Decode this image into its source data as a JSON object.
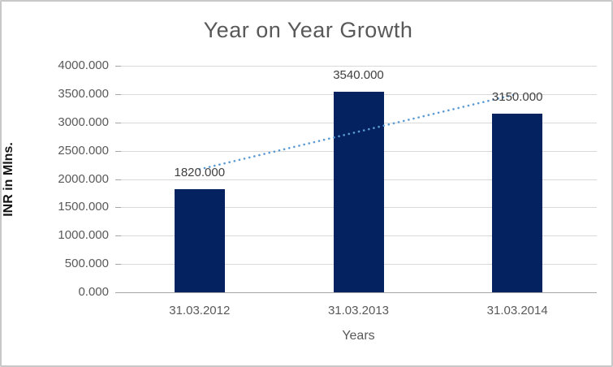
{
  "window": {
    "background": "#ffffff",
    "border_color": "#c8c8c8"
  },
  "chart_data": {
    "type": "bar",
    "title": "Year on Year Growth",
    "xlabel": "Years",
    "ylabel": "INR in Mlns.",
    "categories": [
      "31.03.2012",
      "31.03.2013",
      "31.03.2014"
    ],
    "values": [
      1820,
      3540,
      3150
    ],
    "data_labels": [
      "1820.000",
      "3540.000",
      "3150.000"
    ],
    "ylim": [
      0,
      4000
    ],
    "ytick_step": 500,
    "ytick_labels": [
      "0.000",
      "500.000",
      "1000.000",
      "1500.000",
      "2000.000",
      "2500.000",
      "3000.000",
      "3500.000",
      "4000.000"
    ],
    "grid": true,
    "legend": false,
    "trendline": {
      "type": "linear",
      "style": "dotted",
      "color": "#5b9bd5"
    },
    "colors": {
      "bar": "#04225f",
      "trend": "#5b9bd5",
      "grid": "#d9d9d9",
      "axis_line": "#a6a6a6",
      "title_text": "#595959",
      "axis_text": "#595959",
      "data_label_text": "#404040",
      "ylabel_text": "#141414"
    }
  }
}
